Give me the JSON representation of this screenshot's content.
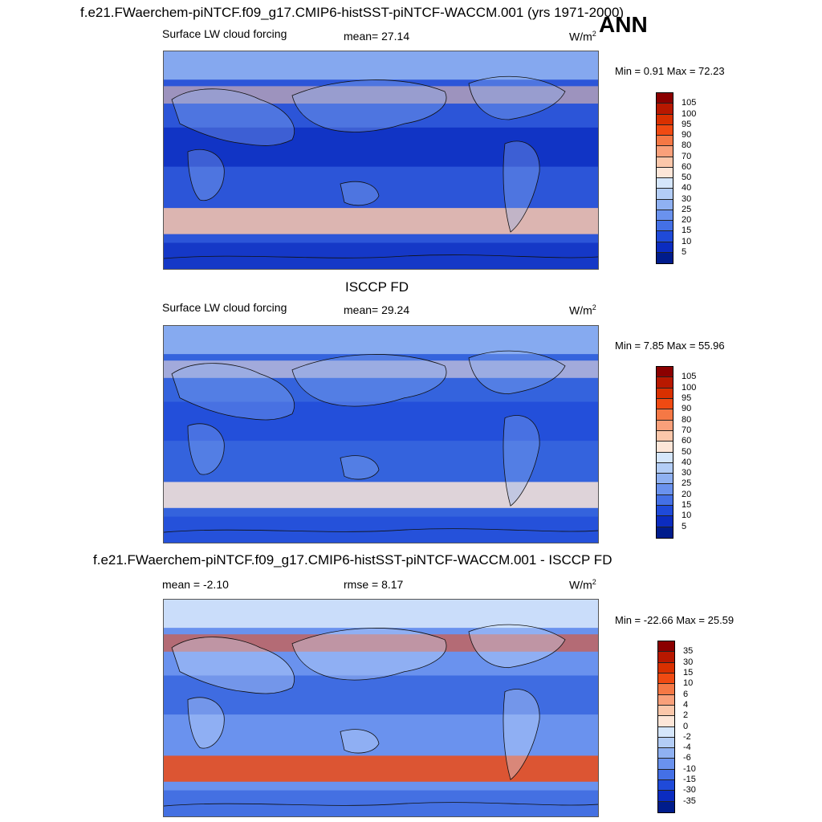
{
  "header": {
    "case_title": "f.e21.FWaerchem-piNTCF.f09_g17.CMIP6-histSST-piNTCF-WACCM.001 (yrs 1971-2000)",
    "season": "ANN"
  },
  "panels": [
    {
      "variable": "Surface LW cloud forcing",
      "stat_text": "mean=  27.14",
      "units": "W/m",
      "units_sup": "2",
      "minmax": "Min =   0.91 Max =  72.23",
      "colorbar": {
        "labels": [
          "105",
          "100",
          "95",
          "90",
          "80",
          "70",
          "60",
          "50",
          "40",
          "30",
          "25",
          "20",
          "15",
          "10",
          "5"
        ],
        "colors": [
          "#8b0000",
          "#b81800",
          "#d93000",
          "#f04a12",
          "#f57845",
          "#f9a07a",
          "#fbc7aa",
          "#fde6d8",
          "#d5e6fb",
          "#b3cdf6",
          "#8fb1f2",
          "#6a92ee",
          "#4470e6",
          "#1f4ad9",
          "#0b2cc0",
          "#001c8c"
        ]
      },
      "map_palette": {
        "ocean": "#2c55d8",
        "low": "#0b2cc0",
        "mid": "#8fb1f2",
        "high": "#fbc7aa"
      }
    },
    {
      "heading": "ISCCP FD",
      "variable": "Surface LW cloud forcing",
      "stat_text": "mean=  29.24",
      "units": "W/m",
      "units_sup": "2",
      "minmax": "Min =   7.85 Max =  55.96",
      "colorbar": {
        "labels": [
          "105",
          "100",
          "95",
          "90",
          "80",
          "70",
          "60",
          "50",
          "40",
          "30",
          "25",
          "20",
          "15",
          "10",
          "5"
        ],
        "colors": [
          "#8b0000",
          "#b81800",
          "#d93000",
          "#f04a12",
          "#f57845",
          "#f9a07a",
          "#fbc7aa",
          "#fde6d8",
          "#d5e6fb",
          "#b3cdf6",
          "#8fb1f2",
          "#6a92ee",
          "#4470e6",
          "#1f4ad9",
          "#0b2cc0",
          "#001c8c"
        ]
      },
      "map_palette": {
        "ocean": "#3463dd",
        "low": "#1f4ad9",
        "mid": "#8fb1f2",
        "high": "#fde6d8"
      }
    },
    {
      "heading": "f.e21.FWaerchem-piNTCF.f09_g17.CMIP6-histSST-piNTCF-WACCM.001 - ISCCP FD",
      "stat_text": "mean =  -2.10",
      "rmse_text": "rmse =   8.17",
      "units": "W/m",
      "units_sup": "2",
      "minmax": "Min = -22.66 Max =  25.59",
      "colorbar": {
        "labels": [
          "35",
          "30",
          "15",
          "10",
          "6",
          "4",
          "2",
          "0",
          "-2",
          "-4",
          "-6",
          "-10",
          "-15",
          "-30",
          "-35"
        ],
        "colors": [
          "#8b0000",
          "#b81800",
          "#d93000",
          "#f04a12",
          "#f57845",
          "#f9a07a",
          "#fbc7aa",
          "#fde6d8",
          "#d5e6fb",
          "#b3cdf6",
          "#8fb1f2",
          "#6a92ee",
          "#4470e6",
          "#1f4ad9",
          "#0b2cc0",
          "#001c8c"
        ]
      },
      "map_palette": {
        "ocean": "#6a92ee",
        "low": "#3463dd",
        "mid": "#d5e6fb",
        "high": "#f04a12"
      }
    }
  ]
}
